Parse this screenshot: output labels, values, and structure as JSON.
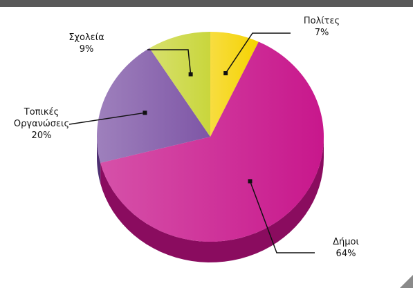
{
  "chart_data": {
    "type": "pie",
    "categories": [
      "Πολίτες",
      "Δήμοι",
      "Τοπικές Οργανώσεις",
      "Σχολεία"
    ],
    "values": [
      7,
      64,
      20,
      9
    ],
    "value_labels": [
      "7%",
      "64%",
      "20%",
      "9%"
    ],
    "colors": [
      "#f5d200",
      "#c8178c",
      "#7e56a6",
      "#c9d63c"
    ],
    "side_colors": [
      "#c9a000",
      "#8a0c5f",
      "#4e2f72",
      "#8e9a20"
    ]
  }
}
